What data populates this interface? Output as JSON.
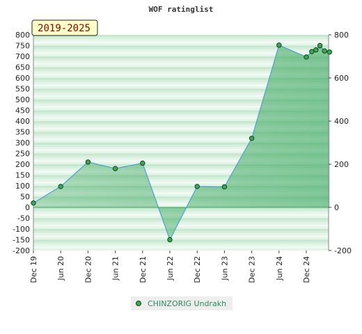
{
  "chart_data": {
    "type": "area",
    "title": "WOF ratinglist",
    "period_label": "2019-2025",
    "x_tick_labels": [
      "Dec 19",
      "Jun 20",
      "Dec 20",
      "Jun 21",
      "Dec 21",
      "Jun 22",
      "Dec 22",
      "Jun 23",
      "Dec 23",
      "Jun 24",
      "Dec 24"
    ],
    "y_left_ticks": [
      800,
      750,
      700,
      650,
      600,
      550,
      500,
      450,
      400,
      350,
      300,
      250,
      200,
      150,
      100,
      50,
      0,
      -50,
      -100,
      -150,
      -200
    ],
    "y_right_ticks": [
      800,
      600,
      400,
      200,
      0,
      -200
    ],
    "ylim": [
      -200,
      800
    ],
    "grid": false,
    "legend_position": "bottom-center",
    "series": [
      {
        "name": "CHINZORIG Undrakh",
        "color": "#4f9fd0",
        "fill_color": "#3aa65e",
        "points": [
          {
            "x": 0,
            "y": 20
          },
          {
            "x": 1,
            "y": 97
          },
          {
            "x": 2,
            "y": 210
          },
          {
            "x": 3,
            "y": 180
          },
          {
            "x": 4,
            "y": 205
          },
          {
            "x": 5,
            "y": -150
          },
          {
            "x": 6,
            "y": 97
          },
          {
            "x": 7,
            "y": 95
          },
          {
            "x": 8,
            "y": 320
          },
          {
            "x": 9,
            "y": 752
          },
          {
            "x": 10,
            "y": 697
          },
          {
            "x": 10.2,
            "y": 722
          },
          {
            "x": 10.35,
            "y": 730
          },
          {
            "x": 10.5,
            "y": 750
          },
          {
            "x": 10.67,
            "y": 725
          },
          {
            "x": 10.85,
            "y": 720
          }
        ]
      }
    ]
  }
}
